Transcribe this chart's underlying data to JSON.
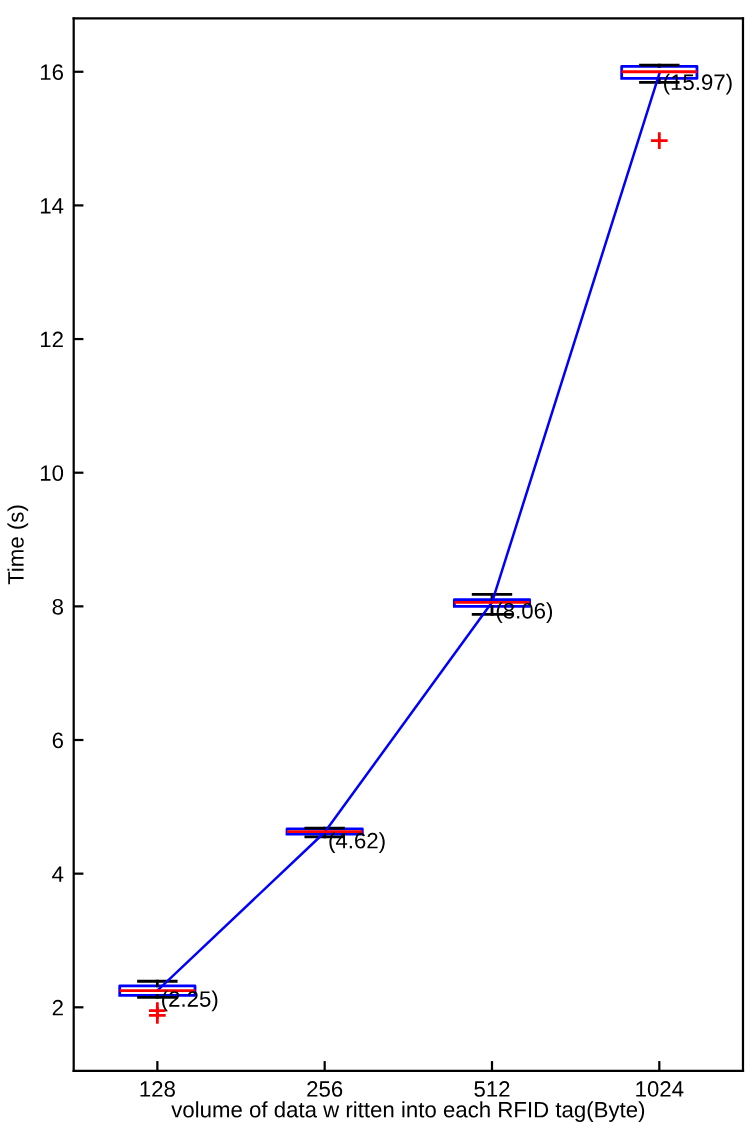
{
  "chart_data": {
    "type": "box",
    "xlabel": "volume of data w ritten into each RFID tag(Byte)",
    "ylabel": "Time (s)",
    "categories": [
      "128",
      "256",
      "512",
      "1024"
    ],
    "ylim": [
      1.05,
      16.8
    ],
    "yticks": [
      2,
      4,
      6,
      8,
      10,
      12,
      14,
      16
    ],
    "grid": false,
    "legend": false,
    "boxes": [
      {
        "low": 2.15,
        "q1": 2.18,
        "median": 2.25,
        "q3": 2.32,
        "high": 2.39,
        "outliers": [
          1.95,
          1.88
        ]
      },
      {
        "low": 4.55,
        "q1": 4.59,
        "median": 4.63,
        "q3": 4.67,
        "high": 4.68
      },
      {
        "low": 7.88,
        "q1": 8.0,
        "median": 8.06,
        "q3": 8.1,
        "high": 8.18
      },
      {
        "low": 15.84,
        "q1": 15.9,
        "median": 16.0,
        "q3": 16.08,
        "high": 16.1,
        "outliers": [
          14.97
        ]
      }
    ],
    "series": [
      {
        "type": "line",
        "color": "#0000ff",
        "marker": "none",
        "line_style": "solid",
        "values": [
          2.25,
          4.62,
          8.06,
          15.97
        ],
        "value_labels": [
          "(2.25)",
          "(4.62)",
          "(8.06)",
          "(15.97)"
        ]
      }
    ]
  }
}
